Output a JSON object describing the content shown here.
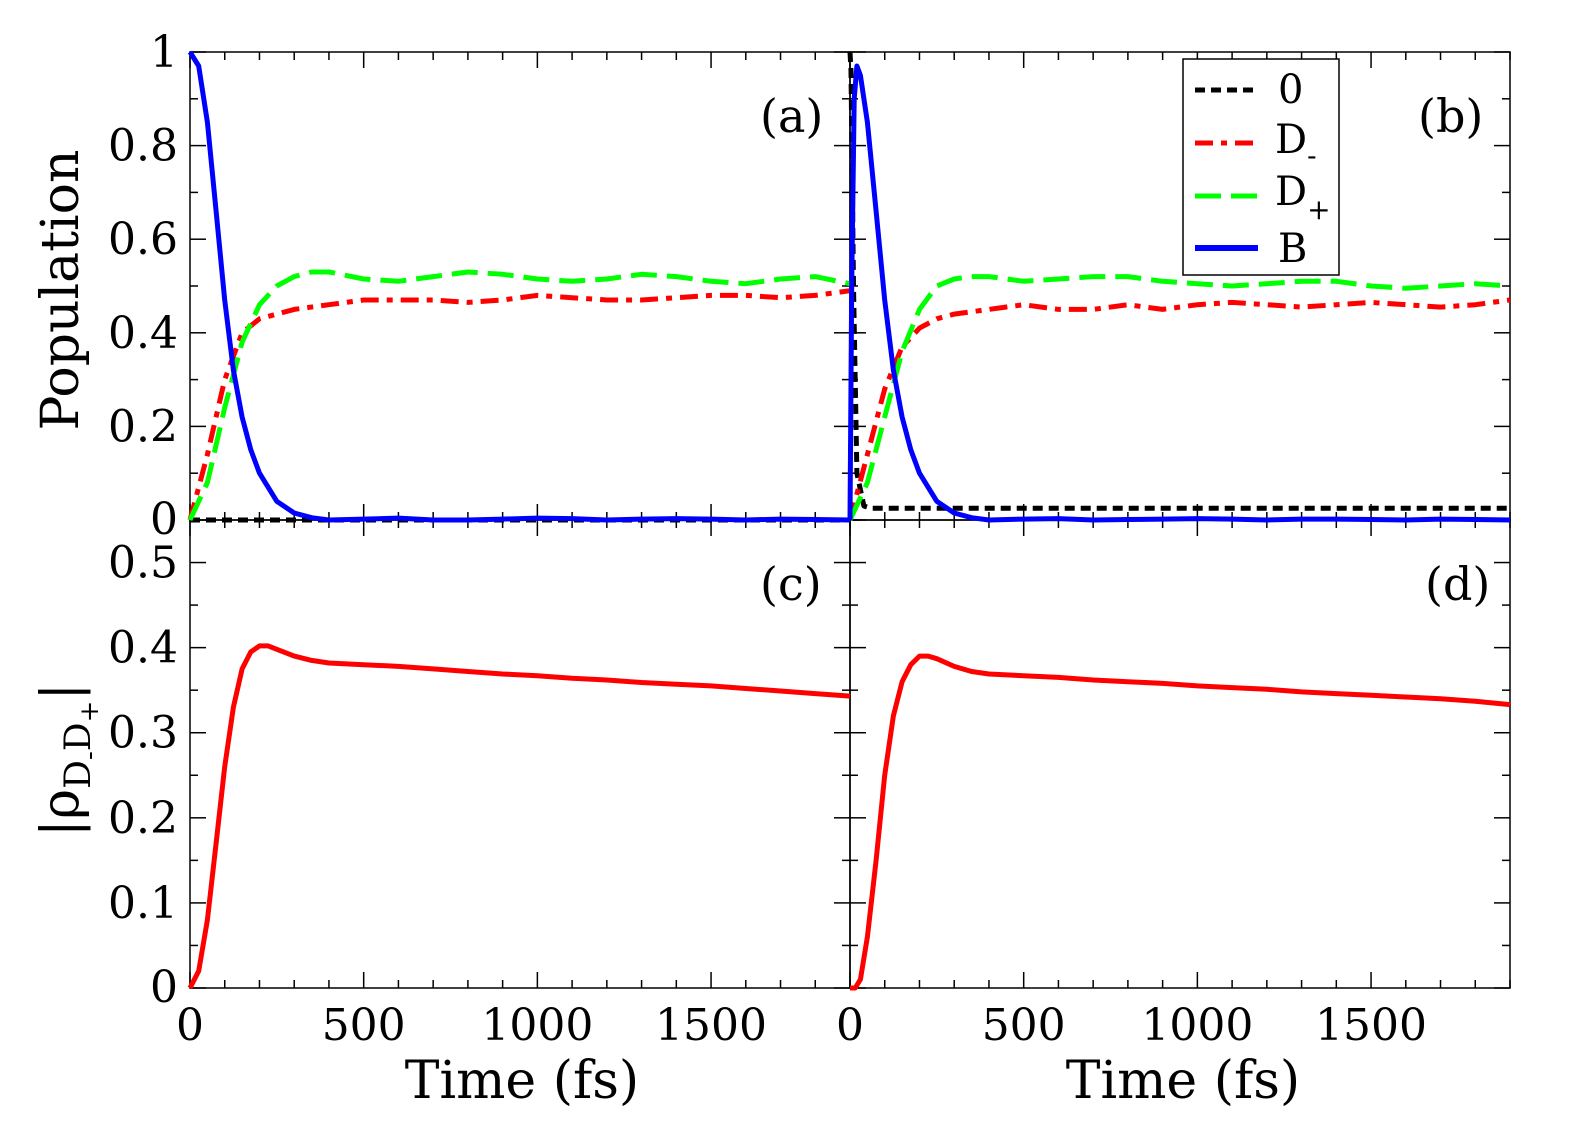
{
  "xlabel": "Time (fs)",
  "ylabel_top": "Population",
  "ylabel_bottom_parts": {
    "open": "|",
    "rho": "ρ",
    "sub1": "D",
    "sub1sup": "-",
    "sub2": "D",
    "sub2sup": "+",
    "close": "|"
  },
  "panels": [
    {
      "id": "a",
      "label": "(a)"
    },
    {
      "id": "b",
      "label": "(b)"
    },
    {
      "id": "c",
      "label": "(c)"
    },
    {
      "id": "d",
      "label": "(d)"
    }
  ],
  "legend": [
    {
      "key": "zero",
      "base": "0",
      "sub": "",
      "color": "#000000",
      "dash": "10,6"
    },
    {
      "key": "dminus",
      "base": "D",
      "sub": "-",
      "color": "#ff0000",
      "dash": "18,8,6,8"
    },
    {
      "key": "dplus",
      "base": "D",
      "sub": "+",
      "color": "#00ff00",
      "dash": "26,10"
    },
    {
      "key": "b",
      "base": "B",
      "sub": "",
      "color": "#0000ff",
      "dash": ""
    }
  ],
  "chart_data": [
    {
      "panel": "a",
      "type": "line",
      "xlim": [
        0,
        1900
      ],
      "ylim": [
        0,
        1
      ],
      "xticks": [
        "0",
        "500",
        "1000",
        "1500"
      ],
      "yticks": [
        "0",
        "0.2",
        "0.4",
        "0.6",
        "0.8",
        "1"
      ],
      "series": [
        {
          "key": "zero",
          "x": [
            0,
            500,
            1000,
            1900
          ],
          "y": [
            0.0,
            0.0,
            0.0,
            0.0
          ]
        },
        {
          "key": "dminus",
          "x": [
            0,
            50,
            100,
            150,
            200,
            250,
            300,
            400,
            500,
            600,
            700,
            800,
            900,
            1000,
            1100,
            1200,
            1300,
            1400,
            1500,
            1600,
            1700,
            1800,
            1900
          ],
          "y": [
            0.0,
            0.14,
            0.3,
            0.4,
            0.43,
            0.44,
            0.45,
            0.46,
            0.47,
            0.47,
            0.47,
            0.465,
            0.47,
            0.48,
            0.475,
            0.47,
            0.47,
            0.475,
            0.48,
            0.48,
            0.475,
            0.48,
            0.49
          ]
        },
        {
          "key": "dplus",
          "x": [
            0,
            50,
            100,
            150,
            200,
            250,
            300,
            350,
            400,
            500,
            600,
            700,
            800,
            900,
            1000,
            1100,
            1200,
            1300,
            1400,
            1500,
            1600,
            1700,
            1800,
            1900
          ],
          "y": [
            0.0,
            0.08,
            0.24,
            0.38,
            0.46,
            0.5,
            0.52,
            0.53,
            0.53,
            0.515,
            0.51,
            0.52,
            0.53,
            0.525,
            0.515,
            0.51,
            0.515,
            0.525,
            0.52,
            0.51,
            0.505,
            0.515,
            0.52,
            0.505
          ]
        },
        {
          "key": "b",
          "x": [
            0,
            25,
            50,
            75,
            100,
            125,
            150,
            175,
            200,
            250,
            300,
            350,
            400,
            500,
            600,
            700,
            800,
            900,
            1000,
            1100,
            1200,
            1300,
            1400,
            1500,
            1600,
            1700,
            1800,
            1900
          ],
          "y": [
            1.0,
            0.97,
            0.85,
            0.66,
            0.47,
            0.32,
            0.22,
            0.15,
            0.1,
            0.04,
            0.015,
            0.005,
            0.0,
            0.002,
            0.004,
            0.0,
            0.0,
            0.002,
            0.004,
            0.003,
            0.0,
            0.002,
            0.003,
            0.002,
            0.0,
            0.002,
            0.001,
            0.0
          ]
        }
      ]
    },
    {
      "panel": "b",
      "type": "line",
      "xlim": [
        0,
        1900
      ],
      "ylim": [
        0,
        1
      ],
      "xticks": [
        "0",
        "500",
        "1000",
        "1500"
      ],
      "yticks": [],
      "series": [
        {
          "key": "zero",
          "x": [
            0,
            3,
            10,
            20,
            40,
            60,
            100,
            500,
            1000,
            1500,
            1900
          ],
          "y": [
            1.0,
            0.96,
            0.5,
            0.1,
            0.03,
            0.025,
            0.025,
            0.025,
            0.025,
            0.025,
            0.025
          ]
        },
        {
          "key": "dminus",
          "x": [
            0,
            50,
            100,
            150,
            200,
            250,
            300,
            400,
            500,
            600,
            700,
            800,
            900,
            1000,
            1100,
            1200,
            1300,
            1400,
            1500,
            1600,
            1700,
            1800,
            1900
          ],
          "y": [
            0.0,
            0.14,
            0.28,
            0.37,
            0.41,
            0.43,
            0.44,
            0.45,
            0.46,
            0.45,
            0.45,
            0.46,
            0.45,
            0.46,
            0.465,
            0.46,
            0.455,
            0.46,
            0.465,
            0.46,
            0.455,
            0.46,
            0.47
          ]
        },
        {
          "key": "dplus",
          "x": [
            0,
            50,
            100,
            150,
            200,
            250,
            300,
            350,
            400,
            500,
            600,
            700,
            800,
            900,
            1000,
            1100,
            1200,
            1300,
            1400,
            1500,
            1600,
            1700,
            1800,
            1900
          ],
          "y": [
            0.0,
            0.08,
            0.22,
            0.36,
            0.45,
            0.5,
            0.515,
            0.52,
            0.52,
            0.51,
            0.515,
            0.52,
            0.52,
            0.51,
            0.505,
            0.5,
            0.505,
            0.51,
            0.51,
            0.5,
            0.495,
            0.5,
            0.505,
            0.5
          ]
        },
        {
          "key": "b",
          "x": [
            0,
            5,
            12,
            20,
            30,
            50,
            75,
            100,
            125,
            150,
            175,
            200,
            250,
            300,
            350,
            400,
            500,
            600,
            700,
            800,
            900,
            1000,
            1100,
            1200,
            1300,
            1400,
            1500,
            1600,
            1700,
            1800,
            1900
          ],
          "y": [
            0.0,
            0.5,
            0.9,
            0.97,
            0.95,
            0.85,
            0.66,
            0.47,
            0.32,
            0.22,
            0.15,
            0.1,
            0.04,
            0.015,
            0.005,
            0.0,
            0.002,
            0.003,
            0.0,
            0.001,
            0.002,
            0.003,
            0.002,
            0.0,
            0.002,
            0.002,
            0.001,
            0.0,
            0.002,
            0.001,
            0.0
          ]
        }
      ]
    },
    {
      "panel": "c",
      "type": "line",
      "xlim": [
        0,
        1900
      ],
      "ylim": [
        0,
        0.55
      ],
      "xticks": [
        "0",
        "500",
        "1000",
        "1500"
      ],
      "yticks": [
        "0",
        "0.1",
        "0.2",
        "0.3",
        "0.4",
        "0.5"
      ],
      "series": [
        {
          "key": "coherence",
          "color": "#ff0000",
          "x": [
            0,
            25,
            50,
            75,
            100,
            125,
            150,
            175,
            200,
            225,
            250,
            300,
            350,
            400,
            500,
            600,
            700,
            800,
            900,
            1000,
            1100,
            1200,
            1300,
            1400,
            1500,
            1600,
            1700,
            1800,
            1900
          ],
          "y": [
            0.0,
            0.02,
            0.08,
            0.17,
            0.26,
            0.33,
            0.375,
            0.395,
            0.402,
            0.402,
            0.398,
            0.39,
            0.385,
            0.382,
            0.38,
            0.378,
            0.375,
            0.372,
            0.369,
            0.367,
            0.364,
            0.362,
            0.359,
            0.357,
            0.355,
            0.352,
            0.349,
            0.346,
            0.343
          ]
        }
      ]
    },
    {
      "panel": "d",
      "type": "line",
      "xlim": [
        0,
        1900
      ],
      "ylim": [
        0,
        0.55
      ],
      "xticks": [
        "0",
        "500",
        "1000",
        "1500"
      ],
      "yticks": [],
      "series": [
        {
          "key": "coherence",
          "color": "#ff0000",
          "x": [
            0,
            15,
            30,
            50,
            75,
            100,
            125,
            150,
            175,
            200,
            225,
            250,
            300,
            350,
            400,
            500,
            600,
            700,
            800,
            900,
            1000,
            1100,
            1200,
            1300,
            1400,
            1500,
            1600,
            1700,
            1800,
            1900
          ],
          "y": [
            0.0,
            0.0,
            0.01,
            0.06,
            0.15,
            0.25,
            0.32,
            0.36,
            0.38,
            0.39,
            0.39,
            0.387,
            0.378,
            0.372,
            0.369,
            0.367,
            0.365,
            0.362,
            0.36,
            0.358,
            0.355,
            0.353,
            0.351,
            0.348,
            0.346,
            0.344,
            0.342,
            0.34,
            0.337,
            0.333
          ]
        }
      ]
    }
  ]
}
